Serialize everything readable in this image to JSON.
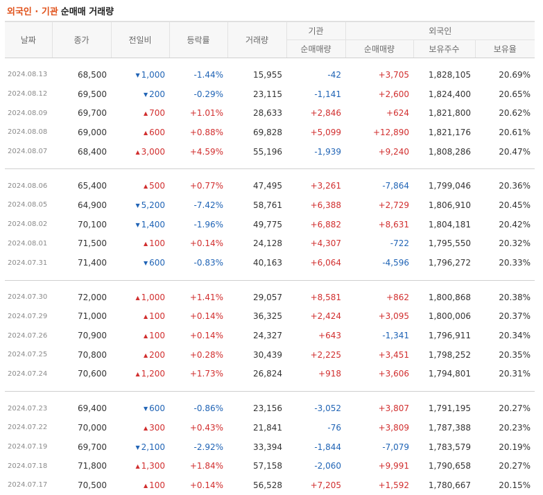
{
  "title": {
    "accent": "외국인 · 기관",
    "normal": "순매매 거래량"
  },
  "headers": {
    "date": "날짜",
    "close": "종가",
    "change": "전일비",
    "rate": "등락률",
    "volume": "거래량",
    "inst_group": "기관",
    "foreign_group": "외국인",
    "inst_net": "순매매량",
    "foreign_net": "순매매량",
    "holdings": "보유주수",
    "holding_ratio": "보유율"
  },
  "colors": {
    "up": "#d12e2e",
    "down": "#1f63b5",
    "accent": "#e0511a"
  },
  "groups": [
    {
      "rows": [
        {
          "date": "2024.08.13",
          "close": "68,500",
          "chg_dir": "down",
          "chg": "1,000",
          "rate": "-1.44%",
          "vol": "15,955",
          "inst": "-42",
          "foreign": "+3,705",
          "hold": "1,828,105",
          "ratio": "20.69%"
        },
        {
          "date": "2024.08.12",
          "close": "69,500",
          "chg_dir": "down",
          "chg": "200",
          "rate": "-0.29%",
          "vol": "23,115",
          "inst": "-1,141",
          "foreign": "+2,600",
          "hold": "1,824,400",
          "ratio": "20.65%"
        },
        {
          "date": "2024.08.09",
          "close": "69,700",
          "chg_dir": "up",
          "chg": "700",
          "rate": "+1.01%",
          "vol": "28,633",
          "inst": "+2,846",
          "foreign": "+624",
          "hold": "1,821,800",
          "ratio": "20.62%"
        },
        {
          "date": "2024.08.08",
          "close": "69,000",
          "chg_dir": "up",
          "chg": "600",
          "rate": "+0.88%",
          "vol": "69,828",
          "inst": "+5,099",
          "foreign": "+12,890",
          "hold": "1,821,176",
          "ratio": "20.61%"
        },
        {
          "date": "2024.08.07",
          "close": "68,400",
          "chg_dir": "up",
          "chg": "3,000",
          "rate": "+4.59%",
          "vol": "55,196",
          "inst": "-1,939",
          "foreign": "+9,240",
          "hold": "1,808,286",
          "ratio": "20.47%"
        }
      ]
    },
    {
      "rows": [
        {
          "date": "2024.08.06",
          "close": "65,400",
          "chg_dir": "up",
          "chg": "500",
          "rate": "+0.77%",
          "vol": "47,495",
          "inst": "+3,261",
          "foreign": "-7,864",
          "hold": "1,799,046",
          "ratio": "20.36%"
        },
        {
          "date": "2024.08.05",
          "close": "64,900",
          "chg_dir": "down",
          "chg": "5,200",
          "rate": "-7.42%",
          "vol": "58,761",
          "inst": "+6,388",
          "foreign": "+2,729",
          "hold": "1,806,910",
          "ratio": "20.45%"
        },
        {
          "date": "2024.08.02",
          "close": "70,100",
          "chg_dir": "down",
          "chg": "1,400",
          "rate": "-1.96%",
          "vol": "49,775",
          "inst": "+6,882",
          "foreign": "+8,631",
          "hold": "1,804,181",
          "ratio": "20.42%"
        },
        {
          "date": "2024.08.01",
          "close": "71,500",
          "chg_dir": "up",
          "chg": "100",
          "rate": "+0.14%",
          "vol": "24,128",
          "inst": "+4,307",
          "foreign": "-722",
          "hold": "1,795,550",
          "ratio": "20.32%"
        },
        {
          "date": "2024.07.31",
          "close": "71,400",
          "chg_dir": "down",
          "chg": "600",
          "rate": "-0.83%",
          "vol": "40,163",
          "inst": "+6,064",
          "foreign": "-4,596",
          "hold": "1,796,272",
          "ratio": "20.33%"
        }
      ]
    },
    {
      "rows": [
        {
          "date": "2024.07.30",
          "close": "72,000",
          "chg_dir": "up",
          "chg": "1,000",
          "rate": "+1.41%",
          "vol": "29,057",
          "inst": "+8,581",
          "foreign": "+862",
          "hold": "1,800,868",
          "ratio": "20.38%"
        },
        {
          "date": "2024.07.29",
          "close": "71,000",
          "chg_dir": "up",
          "chg": "100",
          "rate": "+0.14%",
          "vol": "36,325",
          "inst": "+2,424",
          "foreign": "+3,095",
          "hold": "1,800,006",
          "ratio": "20.37%"
        },
        {
          "date": "2024.07.26",
          "close": "70,900",
          "chg_dir": "up",
          "chg": "100",
          "rate": "+0.14%",
          "vol": "24,327",
          "inst": "+643",
          "foreign": "-1,341",
          "hold": "1,796,911",
          "ratio": "20.34%"
        },
        {
          "date": "2024.07.25",
          "close": "70,800",
          "chg_dir": "up",
          "chg": "200",
          "rate": "+0.28%",
          "vol": "30,439",
          "inst": "+2,225",
          "foreign": "+3,451",
          "hold": "1,798,252",
          "ratio": "20.35%"
        },
        {
          "date": "2024.07.24",
          "close": "70,600",
          "chg_dir": "up",
          "chg": "1,200",
          "rate": "+1.73%",
          "vol": "26,824",
          "inst": "+918",
          "foreign": "+3,606",
          "hold": "1,794,801",
          "ratio": "20.31%"
        }
      ]
    },
    {
      "rows": [
        {
          "date": "2024.07.23",
          "close": "69,400",
          "chg_dir": "down",
          "chg": "600",
          "rate": "-0.86%",
          "vol": "23,156",
          "inst": "-3,052",
          "foreign": "+3,807",
          "hold": "1,791,195",
          "ratio": "20.27%"
        },
        {
          "date": "2024.07.22",
          "close": "70,000",
          "chg_dir": "up",
          "chg": "300",
          "rate": "+0.43%",
          "vol": "21,841",
          "inst": "-76",
          "foreign": "+3,809",
          "hold": "1,787,388",
          "ratio": "20.23%"
        },
        {
          "date": "2024.07.19",
          "close": "69,700",
          "chg_dir": "down",
          "chg": "2,100",
          "rate": "-2.92%",
          "vol": "33,394",
          "inst": "-1,844",
          "foreign": "-7,079",
          "hold": "1,783,579",
          "ratio": "20.19%"
        },
        {
          "date": "2024.07.18",
          "close": "71,800",
          "chg_dir": "up",
          "chg": "1,300",
          "rate": "+1.84%",
          "vol": "57,158",
          "inst": "-2,060",
          "foreign": "+9,991",
          "hold": "1,790,658",
          "ratio": "20.27%"
        },
        {
          "date": "2024.07.17",
          "close": "70,500",
          "chg_dir": "up",
          "chg": "100",
          "rate": "+0.14%",
          "vol": "56,528",
          "inst": "+7,205",
          "foreign": "+1,592",
          "hold": "1,780,667",
          "ratio": "20.15%"
        }
      ]
    }
  ]
}
